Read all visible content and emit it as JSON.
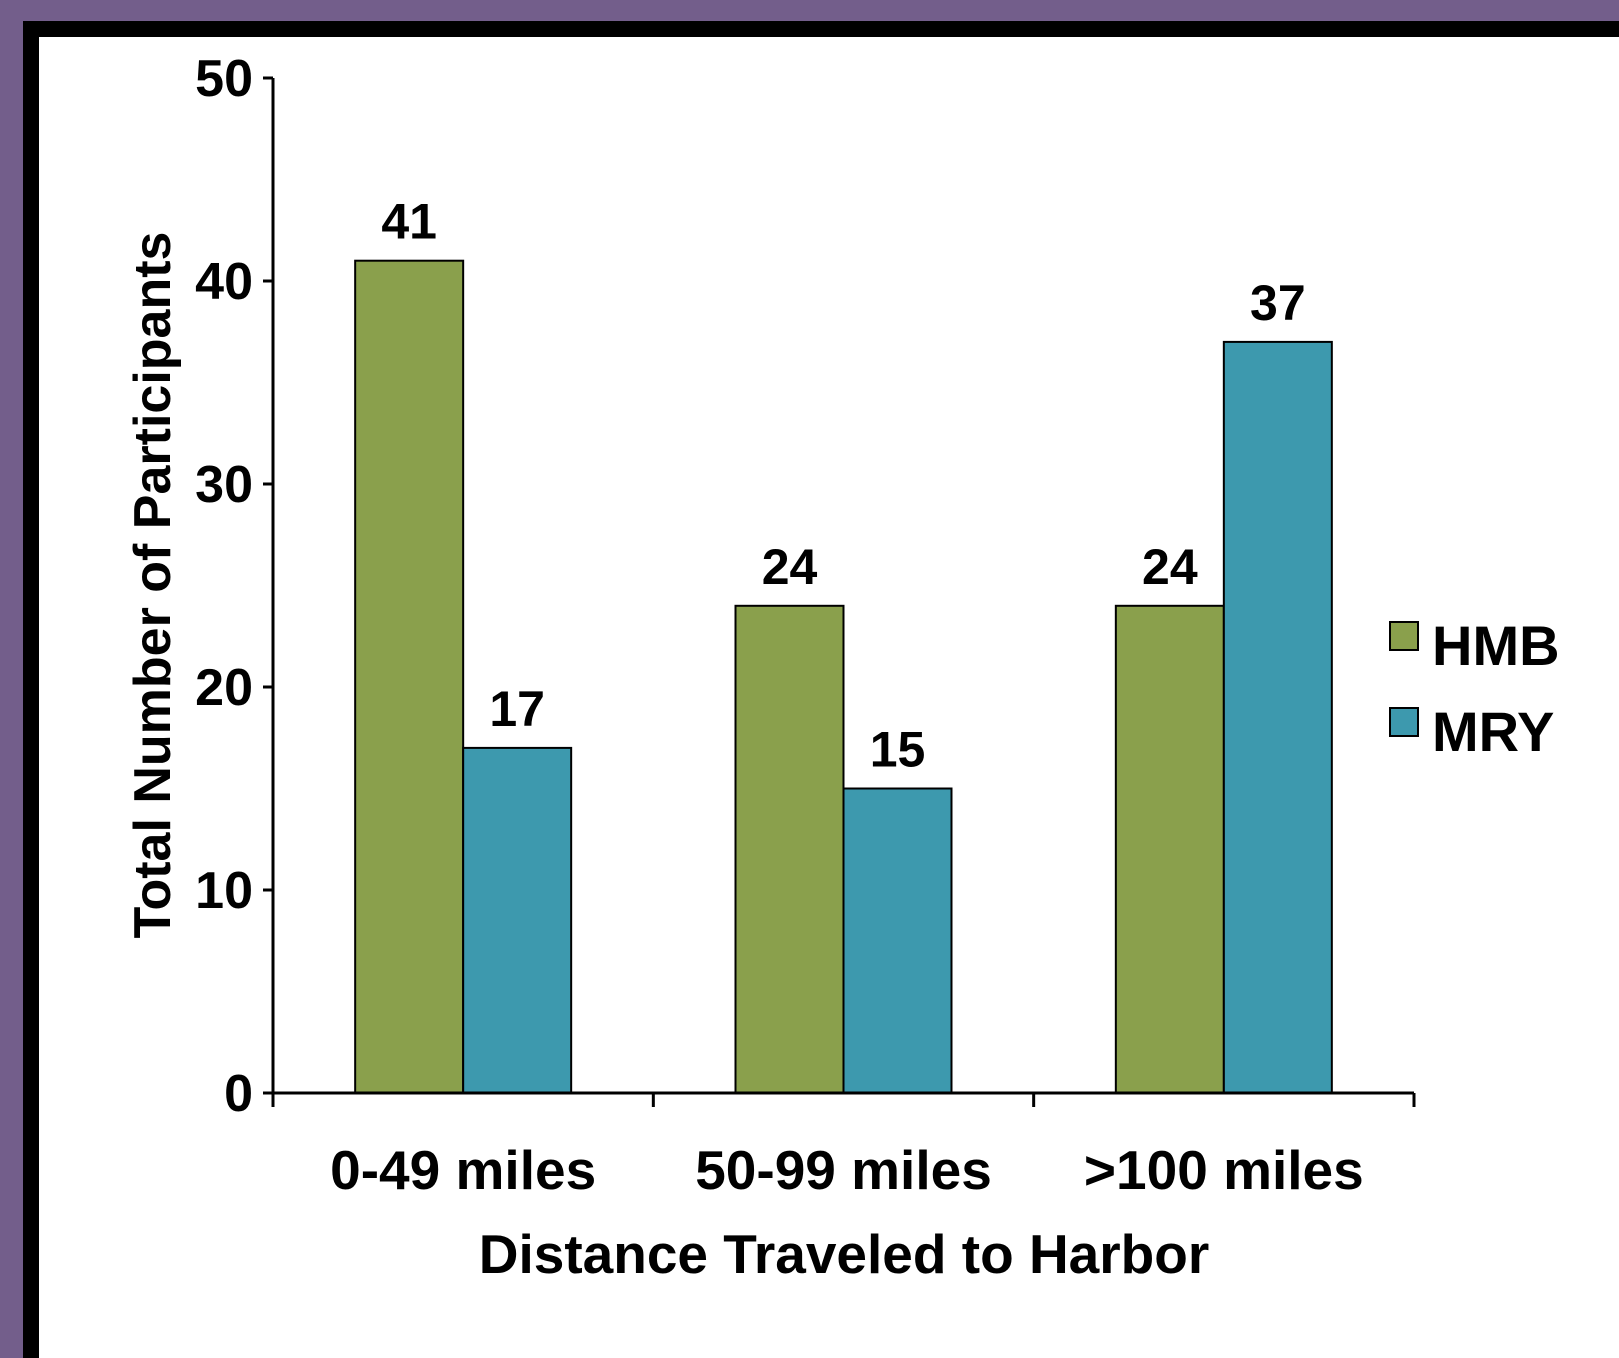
{
  "chart_data": {
    "type": "bar",
    "categories": [
      "0-49 miles",
      "50-99 miles",
      ">100 miles"
    ],
    "series": [
      {
        "name": "HMB",
        "values": [
          41,
          24,
          24
        ],
        "color": "#8aa04c"
      },
      {
        "name": "MRY",
        "values": [
          17,
          15,
          37
        ],
        "color": "#3d99ae"
      }
    ],
    "data_labels": true,
    "xlabel": "Distance Traveled to Harbor",
    "ylabel": "Total Number of Participants",
    "ylim": [
      0,
      50
    ],
    "yticks": [
      0,
      10,
      20,
      30,
      40,
      50
    ],
    "grid": false,
    "legend": {
      "position": "right",
      "entries": [
        "HMB",
        "MRY"
      ]
    }
  },
  "colors": {
    "background_border": "#735e8b",
    "frame": "#000000",
    "panel": "#ffffff"
  }
}
